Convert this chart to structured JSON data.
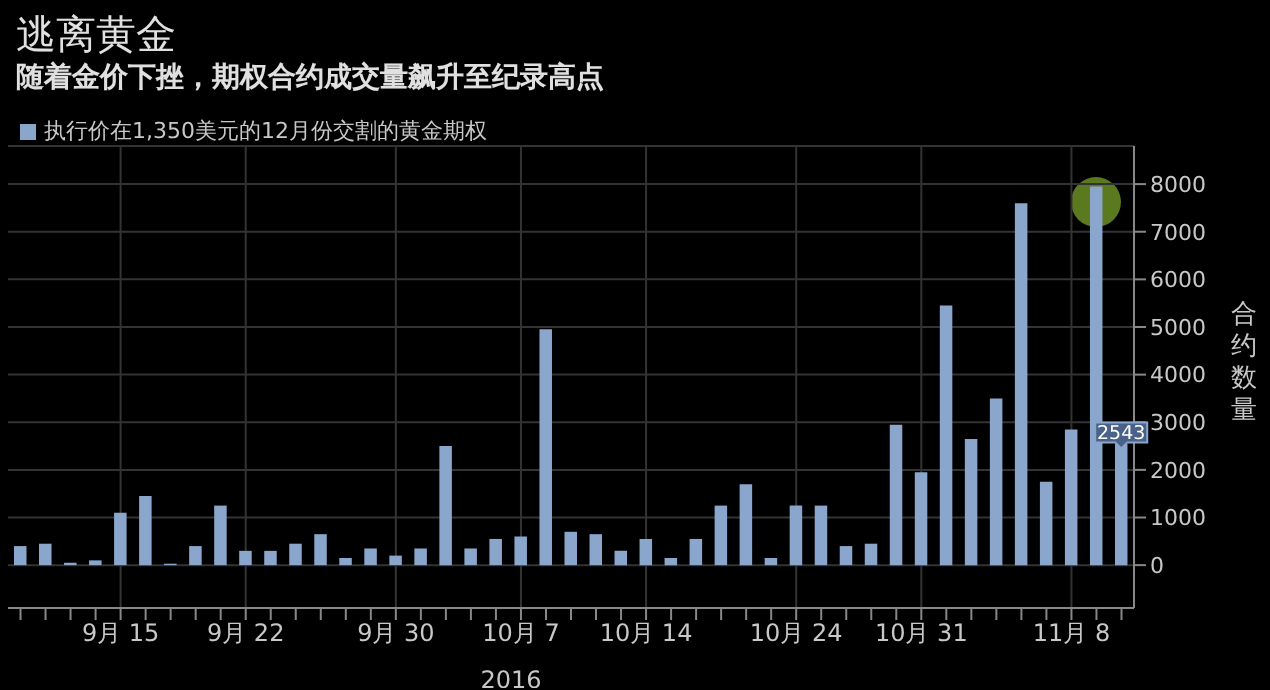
{
  "chart_data": {
    "type": "bar",
    "title": "逃离黄金",
    "subtitle": "随着金价下挫，期权合约成交量飙升至纪录高点",
    "categories": [
      null,
      null,
      null,
      null,
      "9月 15",
      null,
      null,
      null,
      null,
      "9月 22",
      null,
      null,
      null,
      null,
      null,
      "9月 30",
      null,
      null,
      null,
      null,
      "10月 7",
      null,
      null,
      null,
      null,
      "10月 14",
      null,
      null,
      null,
      null,
      null,
      "10月 24",
      null,
      null,
      null,
      null,
      "10月 31",
      null,
      null,
      null,
      null,
      null,
      "11月 8",
      null,
      null
    ],
    "series": [
      {
        "name": "执行价在1,350美元的12月份交割的黄金期权",
        "color": "#8aa6cc",
        "values": [
          400,
          450,
          50,
          100,
          1100,
          1450,
          30,
          400,
          1250,
          300,
          300,
          450,
          650,
          150,
          350,
          200,
          350,
          2500,
          350,
          550,
          600,
          4950,
          700,
          650,
          300,
          550,
          150,
          550,
          1250,
          1700,
          150,
          1250,
          1250,
          400,
          450,
          2950,
          1950,
          5450,
          2650,
          3500,
          7600,
          1750,
          2850,
          7950,
          2543
        ],
        "value_labels": [
          null,
          null,
          null,
          null,
          null,
          null,
          null,
          null,
          null,
          null,
          null,
          null,
          null,
          null,
          null,
          null,
          null,
          null,
          null,
          null,
          null,
          null,
          null,
          null,
          null,
          null,
          null,
          null,
          null,
          null,
          null,
          null,
          null,
          null,
          null,
          null,
          null,
          null,
          null,
          null,
          null,
          null,
          null,
          null,
          "2543"
        ]
      }
    ],
    "xlabel": "2016",
    "ylabel": "合约数量",
    "ylim": [
      -900,
      8800
    ],
    "yticks": [
      0,
      1000,
      2000,
      3000,
      4000,
      5000,
      6000,
      7000,
      8000
    ],
    "grid": true,
    "legend": "top left"
  }
}
